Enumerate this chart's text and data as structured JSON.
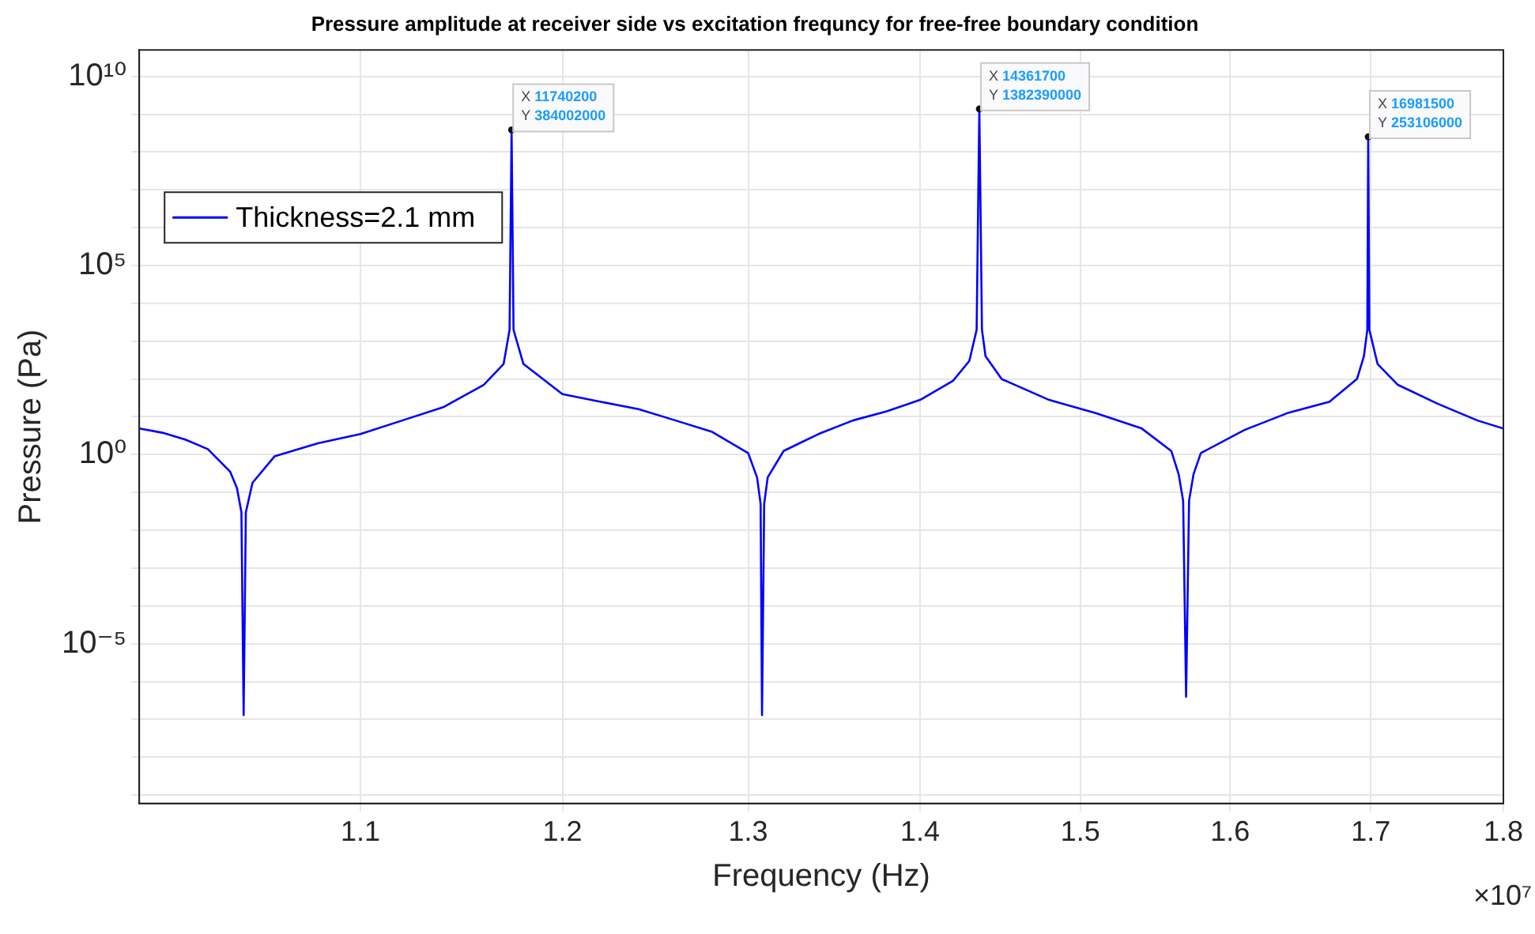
{
  "chart_data": {
    "type": "line",
    "title": "Pressure amplitude at receiver side vs excitation frequncy for free-free boundary condition",
    "xlabel": "Frequency (Hz)",
    "ylabel": "Pressure (Pa)",
    "log": "xy",
    "grid": true,
    "legend": "top left",
    "marker": "none",
    "line_style": "solid",
    "xlim": [
      1.0,
      1.8
    ],
    "xticks": [
      1.1,
      1.2,
      1.3,
      1.4,
      1.5,
      1.6,
      1.7,
      1.8
    ],
    "ylim": [
      6e-10,
      50000000000.0
    ],
    "yticks": [
      {
        "value": 1e-09,
        "label": null
      },
      {
        "value": 1e-08,
        "label": null
      },
      {
        "value": 1e-07,
        "label": null
      },
      {
        "value": 1e-06,
        "label": null
      },
      {
        "value": 1e-05,
        "label": "10⁻⁵"
      },
      {
        "value": 0.0001,
        "label": null
      },
      {
        "value": 0.001,
        "label": null
      },
      {
        "value": 0.01,
        "label": null
      },
      {
        "value": 0.1,
        "label": null
      },
      {
        "value": 1,
        "label": "10⁰"
      },
      {
        "value": 10,
        "label": null
      },
      {
        "value": 100,
        "label": null
      },
      {
        "value": 1000,
        "label": null
      },
      {
        "value": 10000,
        "label": null
      },
      {
        "value": 100000,
        "label": "10⁵"
      },
      {
        "value": 1000000.0,
        "label": null
      },
      {
        "value": 10000000.0,
        "label": null
      },
      {
        "value": 100000000.0,
        "label": null
      },
      {
        "value": 1000000000.0,
        "label": null
      },
      {
        "value": 10000000000.0,
        "label": "10¹⁰"
      }
    ],
    "series": [
      {
        "name": "Thickness=2.1 mm",
        "color": "#0000ff",
        "x": [
          1.0,
          1.01,
          1.02,
          1.03,
          1.04,
          1.043,
          1.045,
          1.046,
          1.047,
          1.05,
          1.06,
          1.08,
          1.1,
          1.12,
          1.14,
          1.16,
          1.17,
          1.173,
          1.17402,
          1.175,
          1.18,
          1.2,
          1.22,
          1.24,
          1.26,
          1.28,
          1.3,
          1.305,
          1.307,
          1.3078,
          1.309,
          1.311,
          1.32,
          1.34,
          1.36,
          1.38,
          1.4,
          1.42,
          1.43,
          1.4345,
          1.43617,
          1.4378,
          1.44,
          1.45,
          1.48,
          1.51,
          1.54,
          1.56,
          1.565,
          1.568,
          1.57,
          1.572,
          1.575,
          1.58,
          1.61,
          1.64,
          1.67,
          1.69,
          1.695,
          1.6975,
          1.69815,
          1.699,
          1.705,
          1.72,
          1.75,
          1.78,
          1.8
        ],
        "values": [
          4.9,
          3.8,
          2.5,
          1.4,
          0.35,
          0.13,
          0.03,
          1.3e-07,
          0.03,
          0.18,
          0.9,
          2,
          3.5,
          8,
          18,
          70,
          250,
          2000,
          384002000,
          2000,
          250,
          40,
          25,
          16,
          8,
          4,
          1.1,
          0.25,
          0.05,
          1.3e-07,
          0.05,
          0.25,
          1.25,
          3.5,
          8,
          14,
          28,
          90,
          300,
          2000,
          1382390000,
          2000,
          400,
          100,
          28,
          12.5,
          5,
          1.25,
          0.3,
          0.06,
          4e-07,
          0.06,
          0.3,
          1.1,
          4.5,
          12.5,
          25,
          100,
          400,
          2000,
          253106000,
          2000,
          250,
          70,
          22,
          8,
          4.9
        ]
      }
    ],
    "annotations": [
      {
        "text": "X 11740200\nY 384002000",
        "x": 1.17402,
        "y": 384002000
      },
      {
        "text": "X 14361700\nY 1382390000",
        "x": 1.43617,
        "y": 1382390000
      },
      {
        "text": "X 16981500\nY 253106000",
        "x": 1.69815,
        "y": 253106000
      },
      "×10⁷"
    ]
  }
}
